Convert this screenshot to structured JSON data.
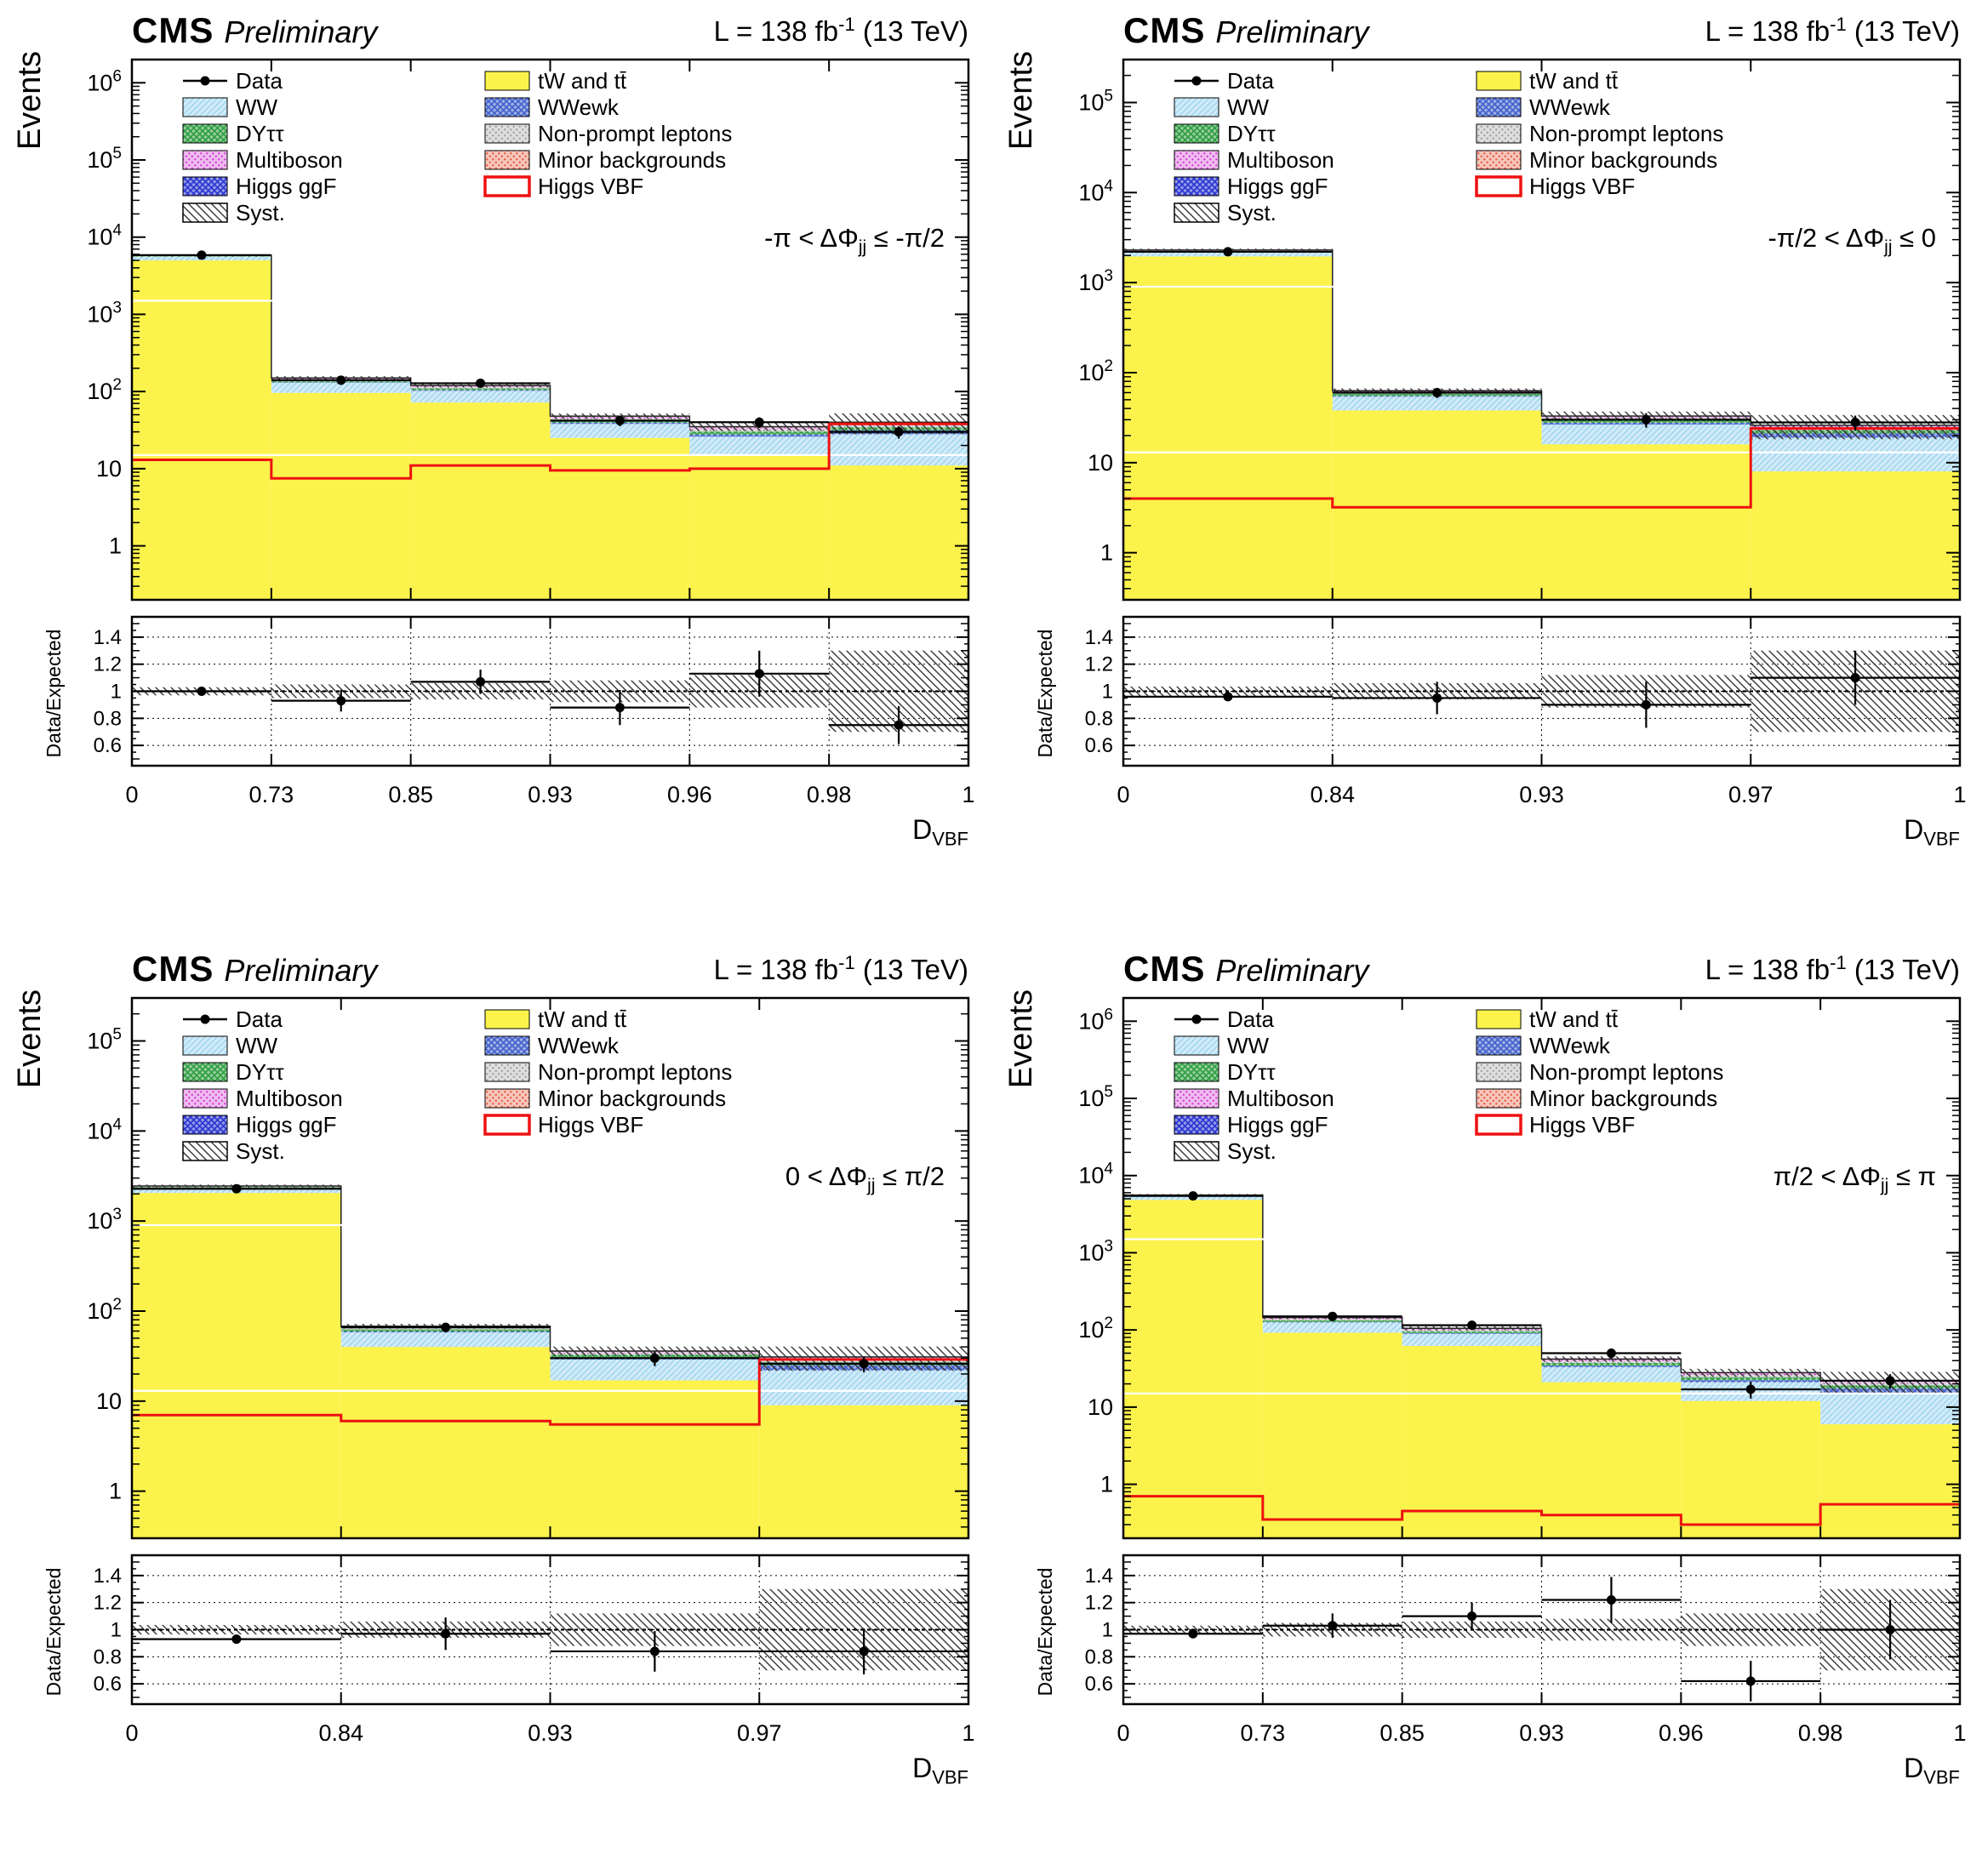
{
  "page": {
    "background": "#ffffff"
  },
  "legend": {
    "columns": [
      [
        {
          "key": "data",
          "label": "Data",
          "swatch": "marker"
        },
        {
          "key": "ww",
          "label": "WW",
          "swatch": "fill"
        },
        {
          "key": "dytt",
          "label": "DYττ",
          "swatch": "fill"
        },
        {
          "key": "multiboson",
          "label": "Multiboson",
          "swatch": "fill"
        },
        {
          "key": "ggf",
          "label": "Higgs ggF",
          "swatch": "fill"
        },
        {
          "key": "syst",
          "label": "Syst.",
          "swatch": "hatch"
        }
      ],
      [
        {
          "key": "tw",
          "label": "tW and tt̄",
          "swatch": "fill"
        },
        {
          "key": "wwewk",
          "label": "WWewk",
          "swatch": "fill"
        },
        {
          "key": "nonprompt",
          "label": "Non-prompt leptons",
          "swatch": "fill"
        },
        {
          "key": "minor",
          "label": "Minor backgrounds",
          "swatch": "fill"
        },
        {
          "key": "vbf",
          "label": "Higgs VBF",
          "swatch": "line"
        }
      ]
    ]
  },
  "style": {
    "colors": {
      "tw": "#fbf34b",
      "ww": "#a8d9f2",
      "wwewk": "#3f5fcb",
      "dytt": "#2c9c3e",
      "nonprompt": "#9e9e9e",
      "multiboson": "#d23bd2",
      "minor": "#e4573a",
      "ggf": "#2733cf",
      "vbf": "#ee1111",
      "data": "#000000",
      "syst": "#333333"
    },
    "patterns": {
      "tw": "solid",
      "ww": "diag",
      "wwewk": "cross",
      "dytt": "cross",
      "nonprompt": "dots",
      "multiboson": "dots",
      "minor": "dots",
      "ggf": "cross"
    },
    "stack_order": [
      "tw",
      "ww",
      "wwewk",
      "dytt",
      "nonprompt",
      "multiboson",
      "minor",
      "ggf"
    ]
  },
  "chart_data": [
    {
      "id": "p0",
      "type": "stacked_log_histogram_with_ratio",
      "header": {
        "cms": "CMS",
        "preliminary": "Preliminary",
        "lumi_pre": "L = 138 fb",
        "lumi_sup": "-1",
        "lumi_post": " (13 TeV)"
      },
      "ylabel": "Events",
      "ratio_ylabel": "Data/Expected",
      "xlabel": {
        "main": "D",
        "sub": "VBF"
      },
      "annotation": {
        "pre": "-π < ΔΦ",
        "sub": "jj",
        "post": " ≤ -π/2"
      },
      "bin_labels": [
        "0",
        "0.73",
        "0.85",
        "0.93",
        "0.96",
        "0.98",
        "1"
      ],
      "ylim": [
        0.2,
        2000000
      ],
      "ratio_ylim": [
        0.45,
        1.55
      ],
      "ratio_ticks": [
        0.6,
        0.8,
        1,
        1.2,
        1.4
      ],
      "white_gridlines": [
        15,
        1500
      ],
      "stack": {
        "tw": [
          5000,
          96,
          72,
          25,
          15,
          11
        ],
        "ww": [
          560,
          34,
          30,
          13,
          11,
          17
        ],
        "wwewk": [
          10,
          2,
          2.5,
          1.6,
          1.8,
          3.5
        ],
        "dytt": [
          70,
          6,
          5,
          3,
          2.5,
          2.8
        ],
        "nonprompt": [
          60,
          5,
          4.5,
          2.4,
          2.2,
          2.7
        ],
        "multiboson": [
          70,
          5,
          4,
          2,
          1.8,
          2.2
        ],
        "minor": [
          20,
          1.2,
          1,
          0.5,
          0.4,
          0.4
        ],
        "ggf": [
          10,
          0.8,
          1,
          0.5,
          0.3,
          0.4
        ]
      },
      "higgs_vbf": [
        13,
        7.5,
        11,
        9.5,
        10,
        38
      ],
      "data": [
        5850,
        140,
        128,
        42,
        40,
        30
      ],
      "data_err": [
        76,
        12,
        11.3,
        6.5,
        6.3,
        5.5
      ],
      "syst_frac": [
        0.03,
        0.05,
        0.06,
        0.08,
        0.12,
        0.3
      ],
      "ratio": [
        1.0,
        0.93,
        1.07,
        0.88,
        1.13,
        0.75
      ],
      "ratio_err": [
        0.015,
        0.08,
        0.09,
        0.13,
        0.17,
        0.14
      ]
    },
    {
      "id": "p1",
      "type": "stacked_log_histogram_with_ratio",
      "header": {
        "cms": "CMS",
        "preliminary": "Preliminary",
        "lumi_pre": "L = 138 fb",
        "lumi_sup": "-1",
        "lumi_post": " (13 TeV)"
      },
      "ylabel": "Events",
      "ratio_ylabel": "Data/Expected",
      "xlabel": {
        "main": "D",
        "sub": "VBF"
      },
      "annotation": {
        "pre": "-π/2 < ΔΦ",
        "sub": "jj",
        "post": " ≤ 0"
      },
      "bin_labels": [
        "0",
        "0.84",
        "0.93",
        "0.97",
        "1"
      ],
      "ylim": [
        0.3,
        300000
      ],
      "ratio_ylim": [
        0.45,
        1.55
      ],
      "ratio_ticks": [
        0.6,
        0.8,
        1,
        1.2,
        1.4
      ],
      "white_gridlines": [
        13,
        900
      ],
      "stack": {
        "tw": [
          1950,
          38,
          16,
          8
        ],
        "ww": [
          240,
          16,
          10.5,
          11
        ],
        "wwewk": [
          5,
          1.2,
          1.3,
          2.2
        ],
        "dytt": [
          35,
          3,
          2,
          1.6
        ],
        "nonprompt": [
          25,
          2.2,
          1.6,
          1.6
        ],
        "multiboson": [
          30,
          2,
          1.2,
          1.2
        ],
        "minor": [
          10,
          0.3,
          0.2,
          0.2
        ],
        "ggf": [
          5,
          0.3,
          0.2,
          0.2
        ]
      },
      "higgs_vbf": [
        4,
        3.2,
        3.2,
        24
      ],
      "data": [
        2200,
        60,
        30,
        28
      ],
      "data_err": [
        47,
        7.7,
        5.5,
        5.3
      ],
      "syst_frac": [
        0.035,
        0.06,
        0.12,
        0.3
      ],
      "ratio": [
        0.96,
        0.95,
        0.9,
        1.1
      ],
      "ratio_err": [
        0.02,
        0.12,
        0.17,
        0.2
      ]
    },
    {
      "id": "p2",
      "type": "stacked_log_histogram_with_ratio",
      "header": {
        "cms": "CMS",
        "preliminary": "Preliminary",
        "lumi_pre": "L = 138 fb",
        "lumi_sup": "-1",
        "lumi_post": " (13 TeV)"
      },
      "ylabel": "Events",
      "ratio_ylabel": "Data/Expected",
      "xlabel": {
        "main": "D",
        "sub": "VBF"
      },
      "annotation": {
        "pre": "0 < ΔΦ",
        "sub": "jj",
        "post": " ≤ π/2"
      },
      "bin_labels": [
        "0",
        "0.84",
        "0.93",
        "0.97",
        "1"
      ],
      "ylim": [
        0.3,
        300000
      ],
      "ratio_ylim": [
        0.45,
        1.55
      ],
      "ratio_ticks": [
        0.6,
        0.8,
        1,
        1.2,
        1.4
      ],
      "white_gridlines": [
        13,
        900
      ],
      "stack": {
        "tw": [
          2050,
          40,
          17,
          9
        ],
        "ww": [
          280,
          18,
          12,
          13
        ],
        "wwewk": [
          5,
          1.3,
          1.5,
          3
        ],
        "dytt": [
          40,
          3.2,
          2.2,
          2
        ],
        "nonprompt": [
          30,
          2.5,
          1.6,
          2
        ],
        "multiboson": [
          30,
          2.3,
          1.3,
          1.5
        ],
        "minor": [
          10,
          0.35,
          0.2,
          0.25
        ],
        "ggf": [
          5,
          0.35,
          0.2,
          0.25
        ]
      },
      "higgs_vbf": [
        7,
        6,
        5.5,
        29
      ],
      "data": [
        2280,
        66,
        30,
        26
      ],
      "data_err": [
        48,
        8.1,
        5.5,
        5.1
      ],
      "syst_frac": [
        0.035,
        0.06,
        0.12,
        0.3
      ],
      "ratio": [
        0.93,
        0.97,
        0.84,
        0.84
      ],
      "ratio_err": [
        0.02,
        0.12,
        0.15,
        0.17
      ]
    },
    {
      "id": "p3",
      "type": "stacked_log_histogram_with_ratio",
      "header": {
        "cms": "CMS",
        "preliminary": "Preliminary",
        "lumi_pre": "L = 138 fb",
        "lumi_sup": "-1",
        "lumi_post": " (13 TeV)"
      },
      "ylabel": "Events",
      "ratio_ylabel": "Data/Expected",
      "xlabel": {
        "main": "D",
        "sub": "VBF"
      },
      "annotation": {
        "pre": "π/2 < ΔΦ",
        "sub": "jj",
        "post": " ≤ π"
      },
      "bin_labels": [
        "0",
        "0.73",
        "0.85",
        "0.93",
        "0.96",
        "0.98",
        "1"
      ],
      "ylim": [
        0.2,
        2000000
      ],
      "ratio_ylim": [
        0.45,
        1.55
      ],
      "ratio_ticks": [
        0.6,
        0.8,
        1,
        1.2,
        1.4
      ],
      "white_gridlines": [
        15,
        1500
      ],
      "stack": {
        "tw": [
          4850,
          92,
          62,
          21,
          12,
          6
        ],
        "ww": [
          520,
          33,
          27,
          12,
          9,
          9.5
        ],
        "wwewk": [
          10,
          2,
          2.2,
          1.5,
          1.4,
          2
        ],
        "dytt": [
          70,
          6.5,
          4.8,
          2.8,
          2,
          1.6
        ],
        "nonprompt": [
          55,
          5,
          4,
          2.2,
          1.7,
          1.4
        ],
        "multiboson": [
          65,
          5,
          4,
          1.8,
          1.5,
          1.2
        ],
        "minor": [
          20,
          1,
          0.6,
          0.4,
          0.2,
          0.15
        ],
        "ggf": [
          10,
          0.5,
          0.4,
          0.3,
          0.2,
          0.15
        ]
      },
      "higgs_vbf": [
        0.7,
        0.35,
        0.45,
        0.4,
        0.3,
        0.55
      ],
      "data": [
        5450,
        150,
        115,
        50,
        17,
        22
      ],
      "data_err": [
        74,
        12.2,
        10.7,
        7.1,
        4.1,
        4.7
      ],
      "syst_frac": [
        0.03,
        0.05,
        0.06,
        0.08,
        0.12,
        0.3
      ],
      "ratio": [
        0.97,
        1.03,
        1.1,
        1.22,
        0.62,
        1.0
      ],
      "ratio_err": [
        0.015,
        0.09,
        0.1,
        0.17,
        0.15,
        0.22
      ]
    }
  ]
}
